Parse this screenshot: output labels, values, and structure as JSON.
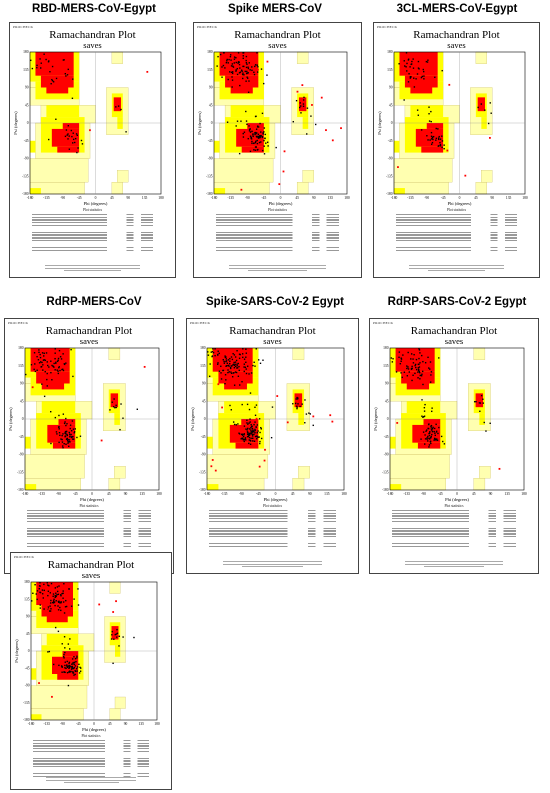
{
  "panels": [
    {
      "id": "p1",
      "title": "RBD-MERS-CoV-Egypt",
      "density": 0.35,
      "labelCount": 2
    },
    {
      "id": "p2",
      "title": "Spike MERS-CoV",
      "density": 1.3,
      "labelCount": 14
    },
    {
      "id": "p3",
      "title": "3CL-MERS-CoV-Egypt",
      "density": 0.55,
      "labelCount": 5
    },
    {
      "id": "p4",
      "title": "RdRP-MERS-CoV",
      "density": 1.0,
      "labelCount": 3
    },
    {
      "id": "p5",
      "title": "Spike-SARS-CoV-2 Egypt",
      "density": 1.6,
      "labelCount": 16
    },
    {
      "id": "p6",
      "title": "RdRP-SARS-CoV-2 Egypt",
      "density": 1.0,
      "labelCount": 2
    },
    {
      "id": "p7",
      "title": "",
      "density": 1.2,
      "labelCount": 6
    }
  ],
  "plot_common": {
    "procheck_label": "PROCHECK",
    "plot_title": "Ramachandran Plot",
    "plot_subtitle": "saves",
    "xlabel": "Phi (degrees)",
    "ylabel": "Psi (degrees)",
    "x_ticks": [
      "-180",
      "-135",
      "-90",
      "-45",
      "0",
      "45",
      "90",
      "135",
      "180"
    ],
    "y_ticks": [
      "180",
      "135",
      "90",
      "45",
      "0",
      "-45",
      "-90",
      "-135",
      "-180"
    ],
    "stats_header": "Plot statistics"
  },
  "chart_data": [
    {
      "type": "scatter",
      "title": "Ramachandran Plot",
      "subtitle": "saves",
      "xlabel": "Phi (degrees)",
      "ylabel": "Psi (degrees)",
      "xlim": [
        -180,
        180
      ],
      "ylim": [
        -180,
        180
      ]
    },
    {
      "type": "scatter",
      "title": "Ramachandran Plot",
      "subtitle": "saves",
      "xlabel": "Phi (degrees)",
      "ylabel": "Psi (degrees)",
      "xlim": [
        -180,
        180
      ],
      "ylim": [
        -180,
        180
      ]
    },
    {
      "type": "scatter",
      "title": "Ramachandran Plot",
      "subtitle": "saves",
      "xlabel": "Phi (degrees)",
      "ylabel": "Psi (degrees)",
      "xlim": [
        -180,
        180
      ],
      "ylim": [
        -180,
        180
      ]
    },
    {
      "type": "scatter",
      "title": "Ramachandran Plot",
      "subtitle": "saves",
      "xlabel": "Phi (degrees)",
      "ylabel": "Psi (degrees)",
      "xlim": [
        -180,
        180
      ],
      "ylim": [
        -180,
        180
      ]
    },
    {
      "type": "scatter",
      "title": "Ramachandran Plot",
      "subtitle": "saves",
      "xlabel": "Phi (degrees)",
      "ylabel": "Psi (degrees)",
      "xlim": [
        -180,
        180
      ],
      "ylim": [
        -180,
        180
      ]
    },
    {
      "type": "scatter",
      "title": "Ramachandran Plot",
      "subtitle": "saves",
      "xlabel": "Phi (degrees)",
      "ylabel": "Psi (degrees)",
      "xlim": [
        -180,
        180
      ],
      "ylim": [
        -180,
        180
      ]
    },
    {
      "type": "scatter",
      "title": "Ramachandran Plot",
      "subtitle": "saves",
      "xlabel": "Phi (degrees)",
      "ylabel": "Psi (degrees)",
      "xlim": [
        -180,
        180
      ],
      "ylim": [
        -180,
        180
      ]
    }
  ],
  "colors": {
    "most_favoured": "#ff0000",
    "additional_allowed": "#ffff00",
    "generously_allowed": "#ffffb0",
    "disallowed": "#ffffff",
    "point": "#000000",
    "label": "#ff0000"
  }
}
